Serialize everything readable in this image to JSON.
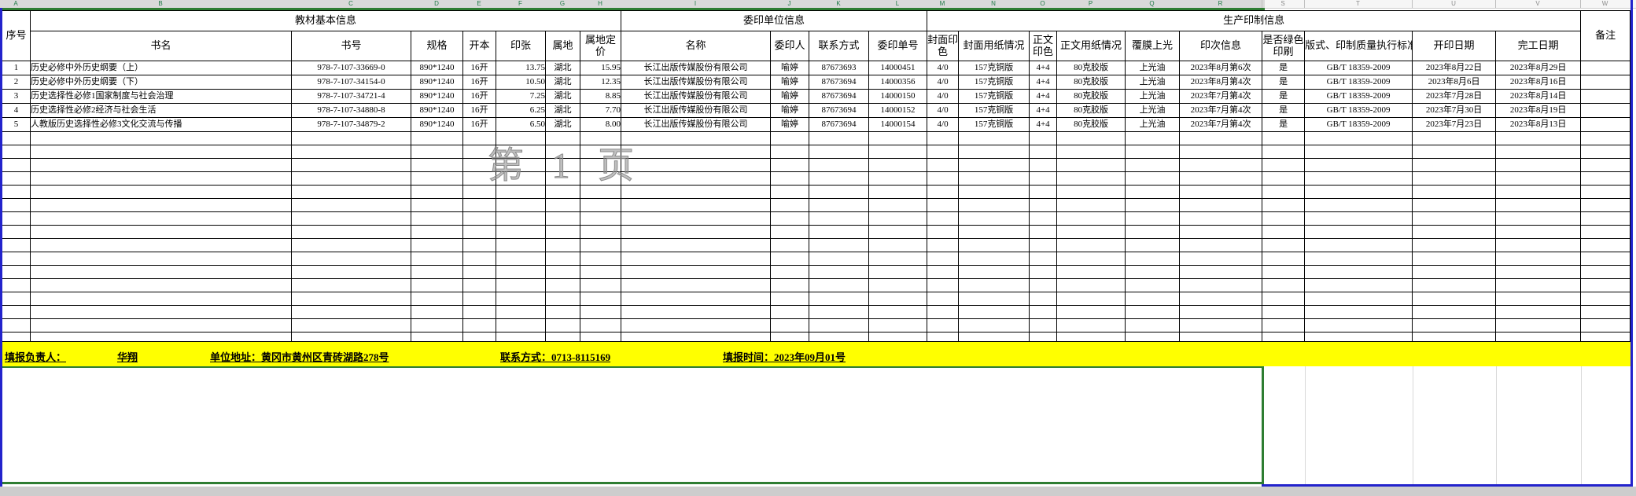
{
  "window": {
    "column_letters": [
      "A",
      "B",
      "C",
      "D",
      "E",
      "F",
      "G",
      "H",
      "I",
      "J",
      "K",
      "L",
      "M",
      "N",
      "O",
      "P",
      "Q",
      "R",
      "S",
      "T",
      "U",
      "V",
      "W"
    ],
    "watermark": "第 1 页"
  },
  "colors": {
    "footer_bar_yellow": "#ffff00",
    "page_break_blue": "#2323cc",
    "print_area_green": "#2e7d32",
    "column_letter_green": "#1f7a46",
    "watermark_gray": "#8c8c8c"
  },
  "table": {
    "group_headers": {
      "serial": "序号",
      "basic": "教材基本信息",
      "unit": "委印单位信息",
      "production": "生产印制信息",
      "remark": "备注"
    },
    "sub_headers": [
      "书名",
      "书号",
      "规格",
      "开本",
      "印张",
      "属地",
      "属地定价",
      "名称",
      "委印人",
      "联系方式",
      "委印单号",
      "封面印色",
      "封面用纸情况",
      "正文印色",
      "正文用纸情况",
      "覆膜上光",
      "印次信息",
      "是否绿色印刷",
      "版式、印制质量执行标准",
      "开印日期",
      "完工日期"
    ],
    "rows": [
      [
        "1",
        "历史必修中外历史纲要（上）",
        "978-7-107-33669-0",
        "890*1240",
        "16开",
        "13.75",
        "湖北",
        "15.95",
        "长江出版传媒股份有限公司",
        "喻婷",
        "87673693",
        "14000451",
        "4/0",
        "157克铜版",
        "4+4",
        "80克胶版",
        "上光油",
        "2023年8月第6次",
        "是",
        "GB/T 18359-2009",
        "2023年8月22日",
        "2023年8月29日",
        ""
      ],
      [
        "2",
        "历史必修中外历史纲要（下）",
        "978-7-107-34154-0",
        "890*1240",
        "16开",
        "10.50",
        "湖北",
        "12.35",
        "长江出版传媒股份有限公司",
        "喻婷",
        "87673694",
        "14000356",
        "4/0",
        "157克铜版",
        "4+4",
        "80克胶版",
        "上光油",
        "2023年8月第4次",
        "是",
        "GB/T 18359-2009",
        "2023年8月6日",
        "2023年8月16日",
        ""
      ],
      [
        "3",
        "历史选择性必修1国家制度与社会治理",
        "978-7-107-34721-4",
        "890*1240",
        "16开",
        "7.25",
        "湖北",
        "8.85",
        "长江出版传媒股份有限公司",
        "喻婷",
        "87673694",
        "14000150",
        "4/0",
        "157克铜版",
        "4+4",
        "80克胶版",
        "上光油",
        "2023年7月第4次",
        "是",
        "GB/T 18359-2009",
        "2023年7月28日",
        "2023年8月14日",
        ""
      ],
      [
        "4",
        "历史选择性必修2经济与社会生活",
        "978-7-107-34880-8",
        "890*1240",
        "16开",
        "6.25",
        "湖北",
        "7.70",
        "长江出版传媒股份有限公司",
        "喻婷",
        "87673694",
        "14000152",
        "4/0",
        "157克铜版",
        "4+4",
        "80克胶版",
        "上光油",
        "2023年7月第4次",
        "是",
        "GB/T 18359-2009",
        "2023年7月30日",
        "2023年8月19日",
        ""
      ],
      [
        "5",
        "人教版历史选择性必修3文化交流与传播",
        "978-7-107-34879-2",
        "890*1240",
        "16开",
        "6.50",
        "湖北",
        "8.00",
        "长江出版传媒股份有限公司",
        "喻婷",
        "87673694",
        "14000154",
        "4/0",
        "157克铜版",
        "4+4",
        "80克胶版",
        "上光油",
        "2023年7月第4次",
        "是",
        "GB/T 18359-2009",
        "2023年7月23日",
        "2023年8月13日",
        ""
      ]
    ],
    "empty_row_count": 16
  },
  "footer": {
    "reporter_label": "填报负责人：",
    "reporter_name": "华翔",
    "address": "单位地址：黄冈市黄州区青砖湖路278号",
    "contact": "联系方式：0713-8115169",
    "report_time": "填报时间：2023年09月01号"
  }
}
